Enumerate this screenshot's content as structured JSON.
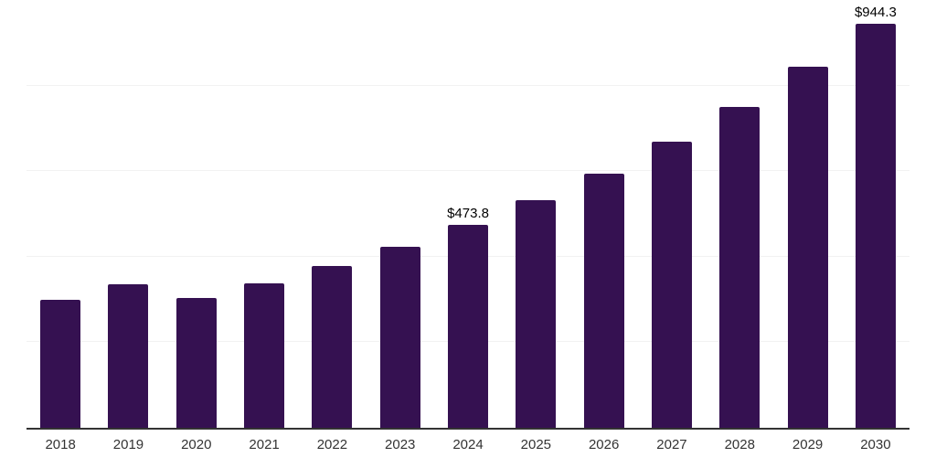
{
  "chart_data": {
    "type": "bar",
    "categories": [
      "2018",
      "2019",
      "2020",
      "2021",
      "2022",
      "2023",
      "2024",
      "2025",
      "2026",
      "2027",
      "2028",
      "2029",
      "2030"
    ],
    "values": [
      300,
      336,
      303,
      338,
      379,
      423,
      473.8,
      532,
      595,
      668,
      750,
      843,
      944.3
    ],
    "data_labels": [
      "",
      "",
      "",
      "",
      "",
      "",
      "$473.8",
      "",
      "",
      "",
      "",
      "",
      "$944.3"
    ],
    "title": "",
    "xlabel": "",
    "ylabel": "",
    "ylim": [
      0,
      1000
    ],
    "gridline_step": 200,
    "grid": "horizontal",
    "legend": "none",
    "colors": {
      "bar": "#351151",
      "axis": "#333333",
      "gridline": "#f2f2f2",
      "data_label": "#000000",
      "tick_label": "#333333",
      "background": "#ffffff"
    }
  }
}
